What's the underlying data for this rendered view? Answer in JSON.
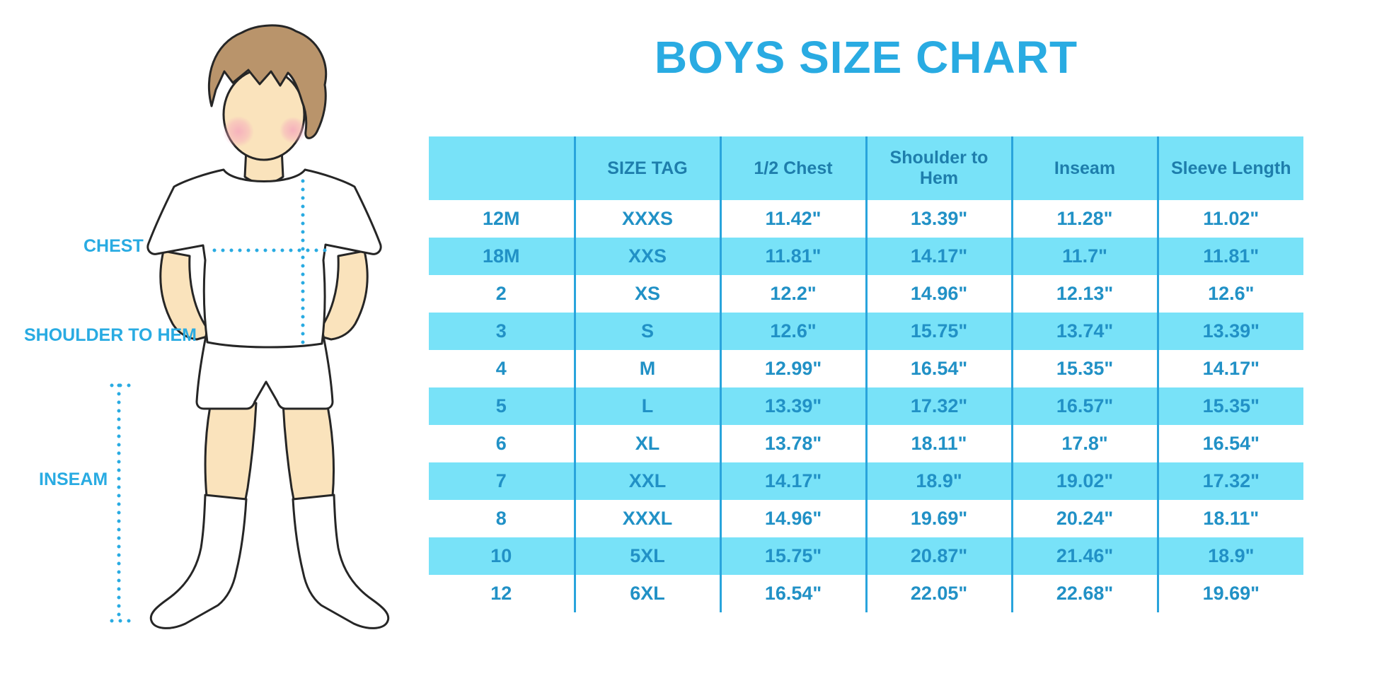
{
  "title": "BOYS SIZE CHART",
  "figure": {
    "labels": {
      "chest": "CHEST",
      "shoulder_to_hem": "SHOULDER TO HEM",
      "inseam": "INSEAM"
    }
  },
  "colors": {
    "accent_blue": "#29ABE2",
    "table_fill_cyan": "#78E2F8",
    "header_text": "#1E7EAC",
    "cell_text": "#2191C6",
    "column_border": "#29A4DC",
    "skin": "#FAE3BC",
    "hair_brown": "#B9946B",
    "blush_pink": "#F5A9BC"
  },
  "chart_data": {
    "type": "table",
    "title": "BOYS SIZE CHART",
    "columns": [
      "",
      "SIZE TAG",
      "1/2 Chest",
      "Shoulder to Hem",
      "Inseam",
      "Sleeve Length"
    ],
    "rows": [
      [
        "12M",
        "XXXS",
        "11.42\"",
        "13.39\"",
        "11.28\"",
        "11.02\""
      ],
      [
        "18M",
        "XXS",
        "11.81\"",
        "14.17\"",
        "11.7\"",
        "11.81\""
      ],
      [
        "2",
        "XS",
        "12.2\"",
        "14.96\"",
        "12.13\"",
        "12.6\""
      ],
      [
        "3",
        "S",
        "12.6\"",
        "15.75\"",
        "13.74\"",
        "13.39\""
      ],
      [
        "4",
        "M",
        "12.99\"",
        "16.54\"",
        "15.35\"",
        "14.17\""
      ],
      [
        "5",
        "L",
        "13.39\"",
        "17.32\"",
        "16.57\"",
        "15.35\""
      ],
      [
        "6",
        "XL",
        "13.78\"",
        "18.11\"",
        "17.8\"",
        "16.54\""
      ],
      [
        "7",
        "XXL",
        "14.17\"",
        "18.9\"",
        "19.02\"",
        "17.32\""
      ],
      [
        "8",
        "XXXL",
        "14.96\"",
        "19.69\"",
        "20.24\"",
        "18.11\""
      ],
      [
        "10",
        "5XL",
        "15.75\"",
        "20.87\"",
        "21.46\"",
        "18.9\""
      ],
      [
        "12",
        "6XL",
        "16.54\"",
        "22.05\"",
        "22.68\"",
        "19.69\""
      ]
    ]
  }
}
